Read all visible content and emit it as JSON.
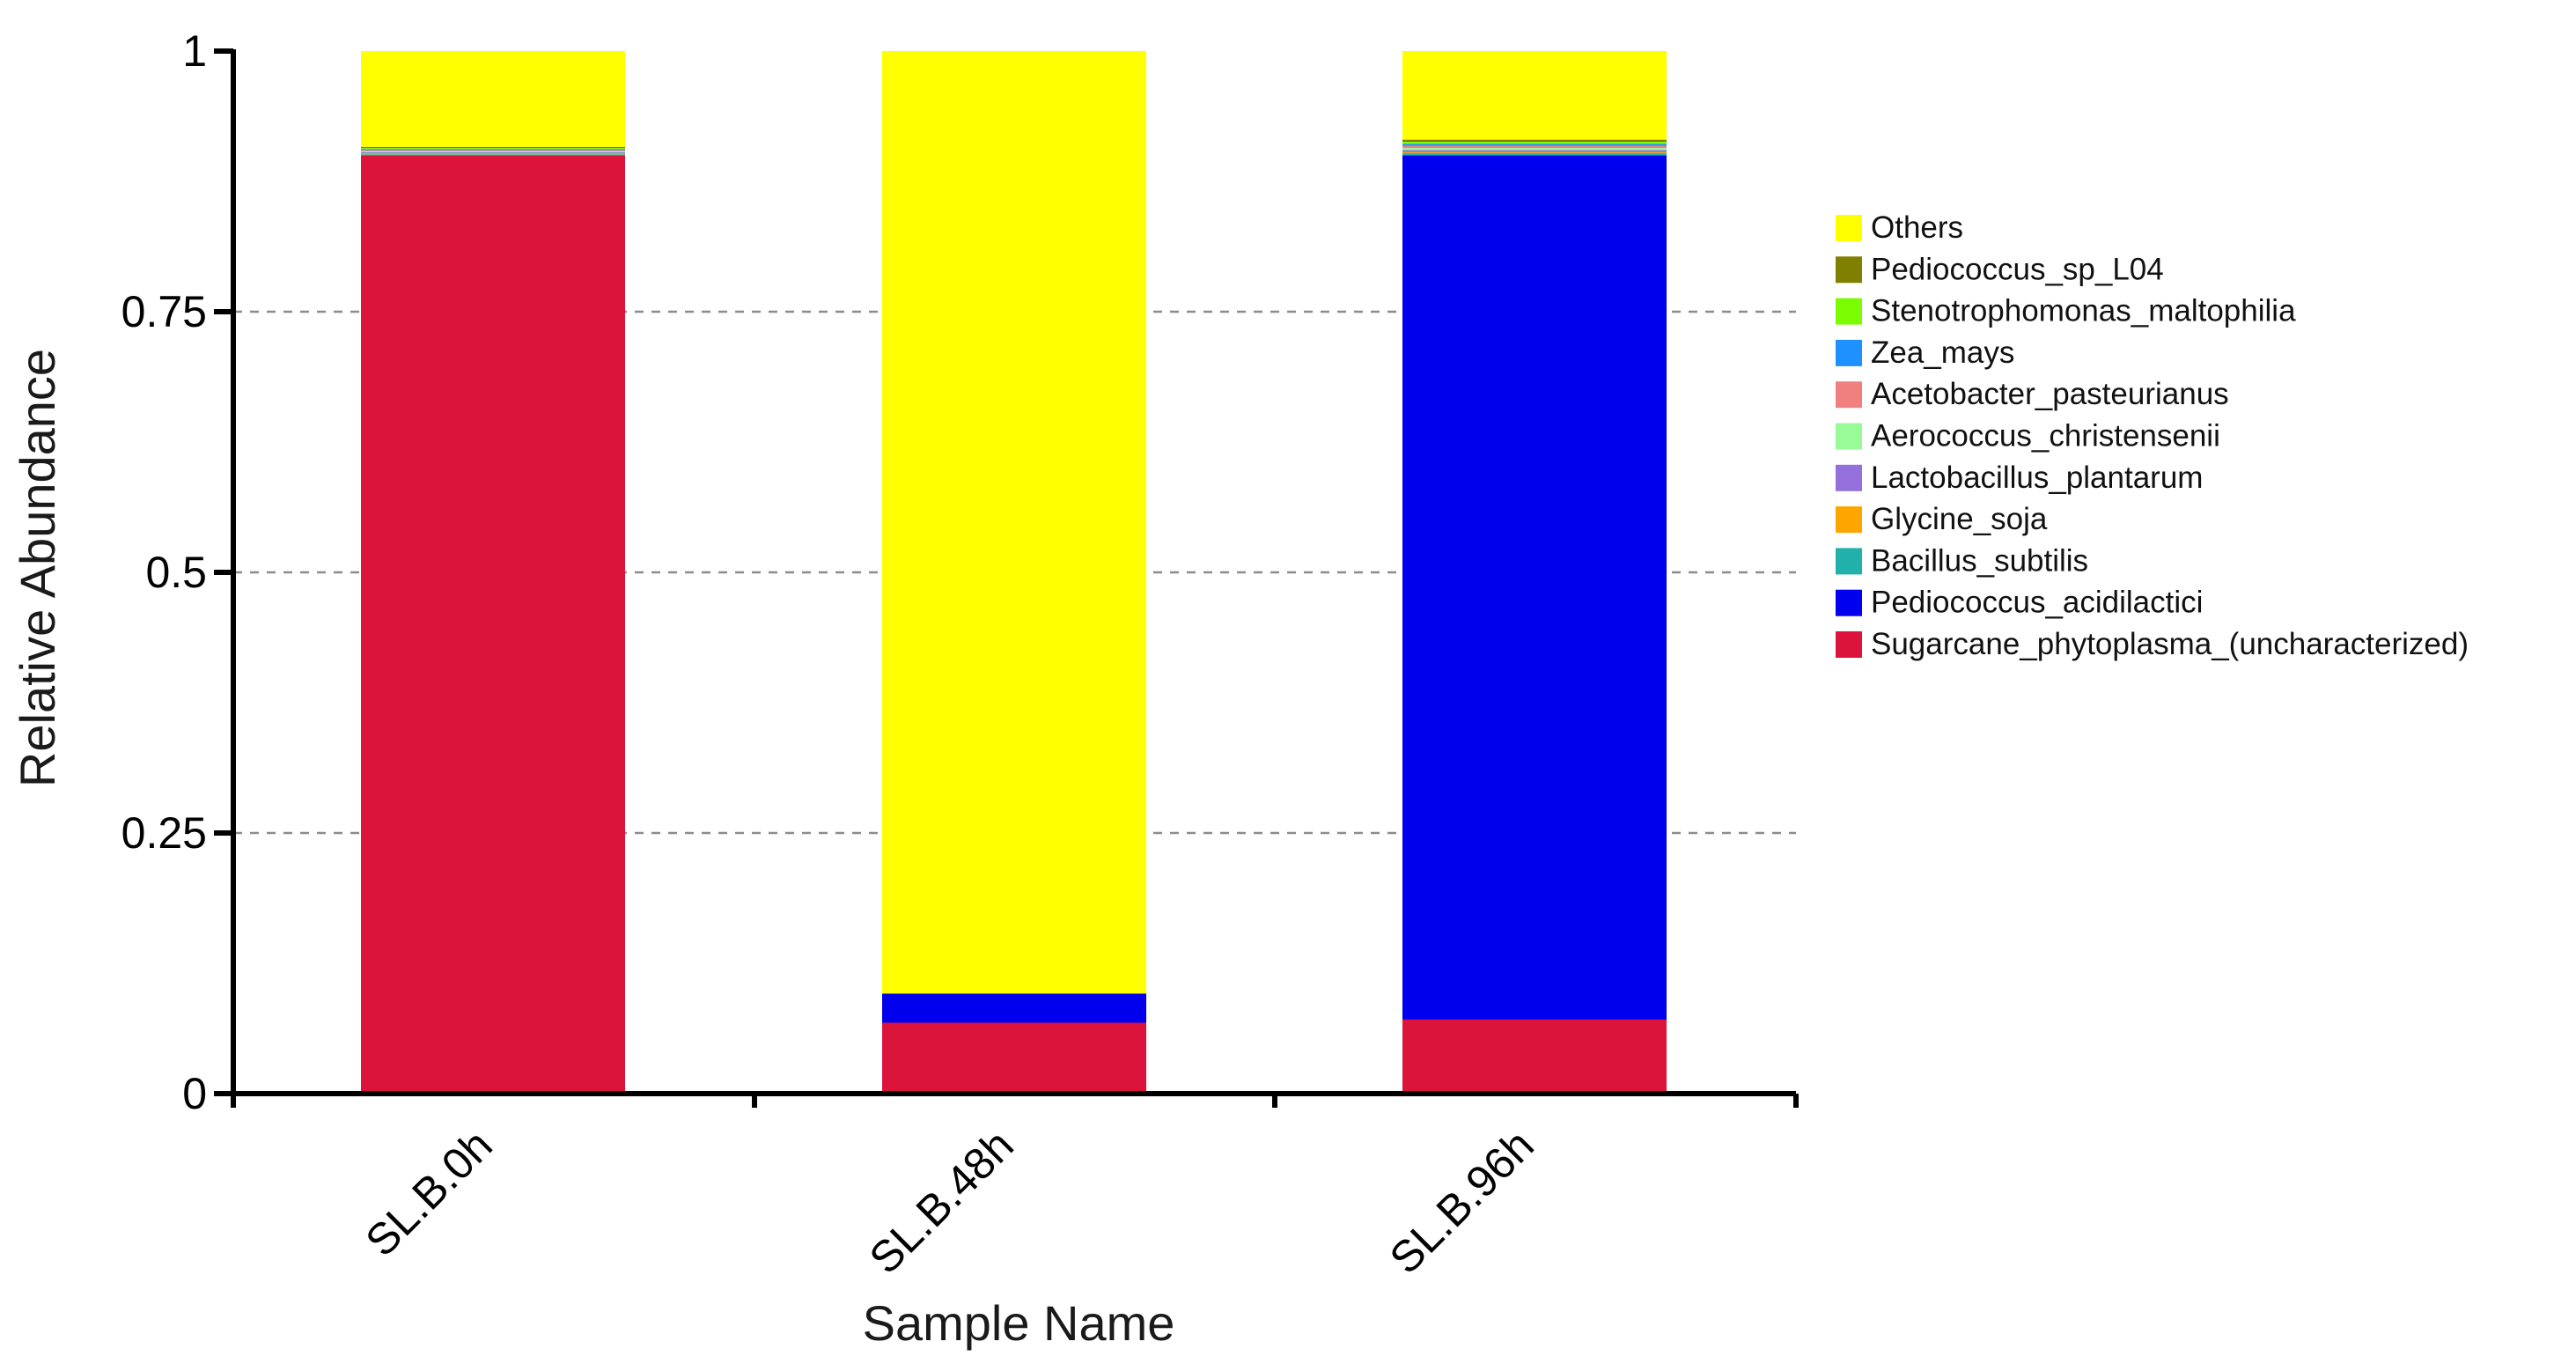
{
  "chart_data": {
    "type": "stacked-bar",
    "xlabel": "Sample Name",
    "ylabel": "Relative Abundance",
    "ylim": [
      0,
      1
    ],
    "yticks": [
      "0",
      "0.25",
      "0.5",
      "0.75",
      "1"
    ],
    "grid": "horizontal-dashed",
    "legend_position": "right",
    "categories": [
      "SL.B.0h",
      "SL.B.48h",
      "SL.B.96h"
    ],
    "series": [
      {
        "name": "Sugarcane_phytoplasma_(uncharacterized)",
        "color": "#DC143C",
        "values": [
          0.9,
          0.068,
          0.071
        ]
      },
      {
        "name": "Pediococcus_acidilactici",
        "color": "#0000EE",
        "values": [
          0.0,
          0.028,
          0.829
        ]
      },
      {
        "name": "Bacillus_subtilis",
        "color": "#20B2AA",
        "values": [
          0.001,
          0.0,
          0.002
        ]
      },
      {
        "name": "Glycine_soja",
        "color": "#FFA500",
        "values": [
          0.001,
          0.0,
          0.001
        ]
      },
      {
        "name": "Lactobacillus_plantarum",
        "color": "#9370DB",
        "values": [
          0.001,
          0.0,
          0.002
        ]
      },
      {
        "name": "Aerococcus_christensenii",
        "color": "#98FB98",
        "values": [
          0.001,
          0.0,
          0.002
        ]
      },
      {
        "name": "Acetobacter_pasteurianus",
        "color": "#F08080",
        "values": [
          0.001,
          0.0,
          0.002
        ]
      },
      {
        "name": "Zea_mays",
        "color": "#1E90FF",
        "values": [
          0.001,
          0.0,
          0.002
        ]
      },
      {
        "name": "Stenotrophomonas_maltophilia",
        "color": "#7CFC00",
        "values": [
          0.001,
          0.0,
          0.002
        ]
      },
      {
        "name": "Pediococcus_sp_L04",
        "color": "#808000",
        "values": [
          0.001,
          0.0,
          0.002
        ]
      },
      {
        "name": "Others",
        "color": "#FFFF00",
        "values": [
          0.092,
          0.904,
          0.085
        ]
      }
    ],
    "legend_order": [
      "Others",
      "Pediococcus_sp_L04",
      "Stenotrophomonas_maltophilia",
      "Zea_mays",
      "Acetobacter_pasteurianus",
      "Aerococcus_christensenii",
      "Lactobacillus_plantarum",
      "Glycine_soja",
      "Bacillus_subtilis",
      "Pediococcus_acidilactici",
      "Sugarcane_phytoplasma_(uncharacterized)"
    ]
  }
}
